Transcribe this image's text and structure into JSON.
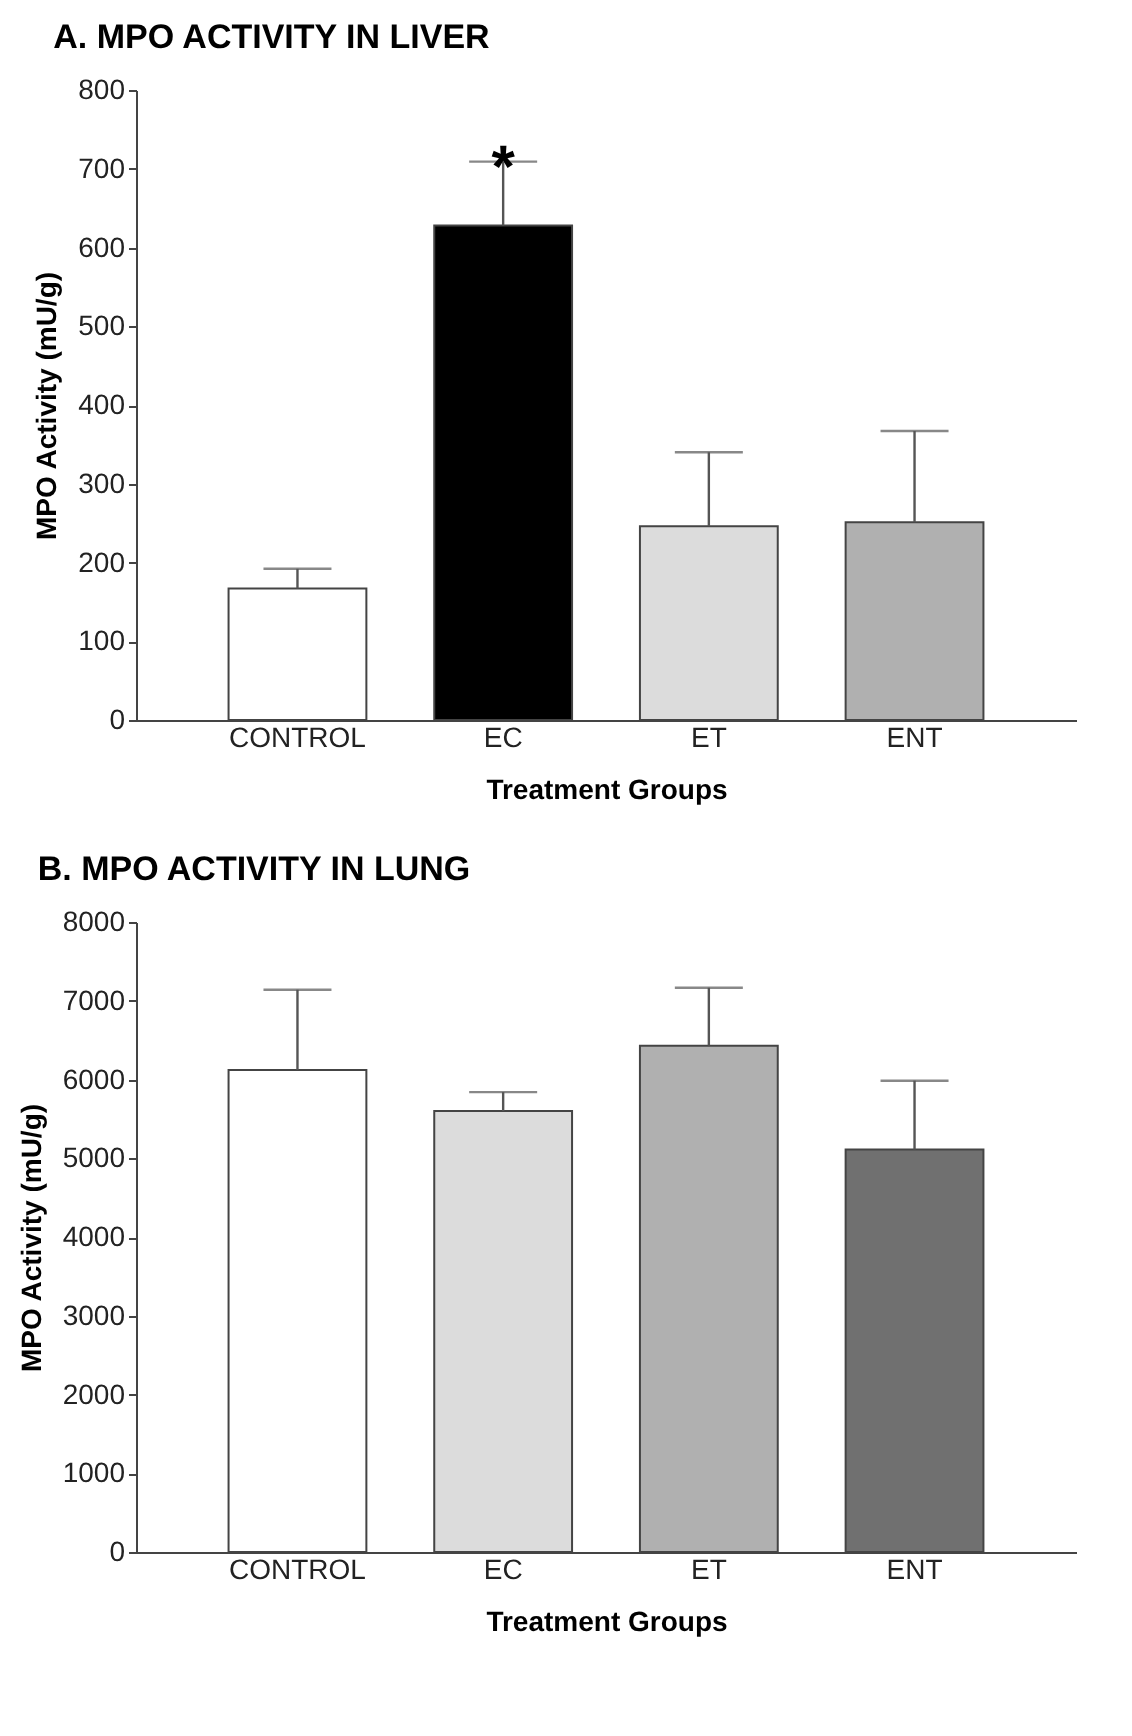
{
  "chart_data": [
    {
      "type": "bar",
      "title": "A.  MPO ACTIVITY IN LIVER",
      "xlabel": "Treatment Groups",
      "ylabel": "MPO Activity (mU/g)",
      "categories": [
        "CONTROL",
        "EC",
        "ET",
        "ENT"
      ],
      "values": [
        167,
        628,
        246,
        251
      ],
      "colors": [
        "#ffffff",
        "#000000",
        "#dcdcdc",
        "#b0b0b0"
      ],
      "errors": [
        [
          167,
          192
        ],
        [
          628,
          709
        ],
        [
          246,
          340
        ],
        [
          251,
          367
        ]
      ],
      "ylim": [
        0,
        800
      ],
      "yticks": [
        0,
        100,
        200,
        300,
        400,
        500,
        600,
        700,
        800
      ],
      "grid": false,
      "annotations": [
        {
          "text": "*",
          "x": "EC",
          "y": 715
        }
      ]
    },
    {
      "type": "bar",
      "title": "B.  MPO ACTIVITY IN LUNG",
      "xlabel": "Treatment Groups",
      "ylabel": "MPO Activity (mU/g)",
      "categories": [
        "CONTROL",
        "EC",
        "ET",
        "ENT"
      ],
      "values": [
        6120,
        5600,
        6430,
        5110
      ],
      "colors": [
        "#ffffff",
        "#dcdcdc",
        "#b0b0b0",
        "#707070"
      ],
      "errors": [
        [
          6120,
          7140
        ],
        [
          5600,
          5840
        ],
        [
          6430,
          7165
        ],
        [
          5110,
          5985
        ]
      ],
      "ylim": [
        0,
        8000
      ],
      "yticks": [
        0,
        1000,
        2000,
        3000,
        4000,
        5000,
        6000,
        7000,
        8000
      ],
      "grid": false
    }
  ]
}
